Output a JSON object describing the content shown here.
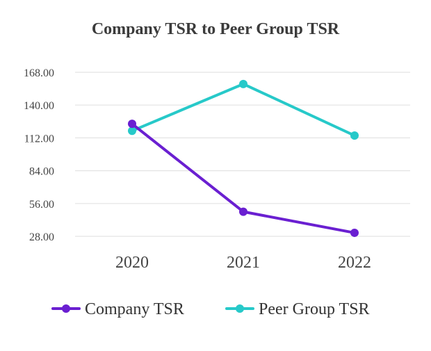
{
  "chart_data": {
    "type": "line",
    "title": "Company TSR to Peer Group TSR",
    "xlabel": "",
    "ylabel": "",
    "categories": [
      "2020",
      "2021",
      "2022"
    ],
    "y_ticks": [
      "168.00",
      "140.00",
      "112.00",
      "84.00",
      "56.00",
      "28.00"
    ],
    "y_tick_values": [
      168,
      140,
      112,
      84,
      56,
      28
    ],
    "ylim": [
      28,
      168
    ],
    "grid": true,
    "legend_position": "bottom",
    "series": [
      {
        "name": "Company TSR",
        "color": "#6a1fd1",
        "values": [
          124,
          49,
          31
        ]
      },
      {
        "name": "Peer Group TSR",
        "color": "#27c9c9",
        "values": [
          118,
          158,
          114
        ]
      }
    ]
  }
}
